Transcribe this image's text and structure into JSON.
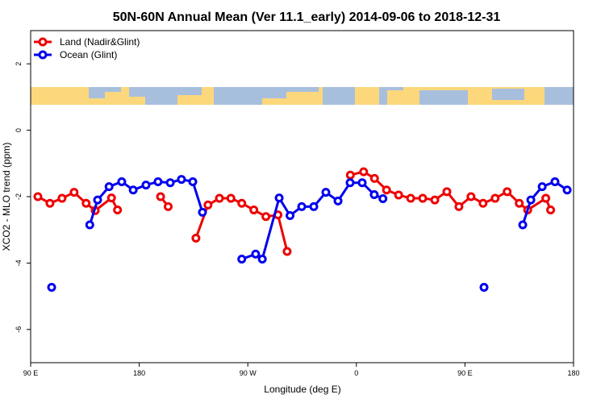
{
  "chart_data": {
    "type": "line",
    "title": "50N-60N Annual Mean (Ver 11.1_early)   2014-09-06 to 2018-12-31",
    "x_label": "Longitude (deg E)",
    "y_label": "XCO2 - MLO trend (ppm)",
    "xlim": [
      90,
      540
    ],
    "ylim": [
      -7,
      3
    ],
    "xticks": [
      {
        "value": 90,
        "label": "90 E"
      },
      180,
      {
        "value": 270,
        "label": "90 W"
      },
      {
        "value": 360,
        "label": "0"
      },
      {
        "value": 450,
        "label": "90 E"
      },
      {
        "value": 540,
        "label": "180"
      }
    ],
    "yticks": [
      -6,
      -4,
      -2,
      0,
      2
    ],
    "legend": "top-left",
    "series": [
      {
        "name": "Land (Nadir&Glint)",
        "color": "#ee0000",
        "x": [
          96,
          106,
          116,
          126,
          136,
          143.5,
          157,
          162,
          null,
          197.7,
          204,
          null,
          227,
          237,
          246.5,
          256,
          265,
          275,
          285,
          295,
          302.6,
          null,
          355,
          366,
          375,
          385,
          395,
          405,
          415,
          425,
          435,
          445,
          455,
          465,
          475,
          485,
          495,
          502,
          517,
          521
        ],
        "values": [
          -2.0,
          -2.2,
          -2.05,
          -1.87,
          -2.2,
          -2.42,
          -2.04,
          -2.4,
          null,
          -2.0,
          -2.3,
          null,
          -3.25,
          -2.25,
          -2.05,
          -2.05,
          -2.2,
          -2.4,
          -2.6,
          -2.55,
          -3.65,
          null,
          -1.35,
          -1.25,
          -1.45,
          -1.8,
          -1.95,
          -2.05,
          -2.05,
          -2.1,
          -1.85,
          -2.3,
          -2.0,
          -2.2,
          -2.05,
          -1.85,
          -2.2,
          -2.4,
          -2.05,
          -2.4
        ]
      },
      {
        "name": "Ocean (Glint)",
        "color": "#0000ee",
        "x": [
          107.4,
          null,
          139,
          145.5,
          155,
          165.5,
          175,
          185.6,
          195.6,
          205.7,
          215,
          224.4,
          232.4,
          null,
          265,
          276.5,
          282,
          296,
          305,
          314.7,
          324.7,
          334.7,
          344.8,
          354.8,
          364.8,
          374.8,
          382,
          null,
          465.8,
          null,
          497.9,
          504.6,
          514,
          524.6,
          534.7
        ],
        "values": [
          -4.73,
          null,
          -2.85,
          -2.1,
          -1.7,
          -1.55,
          -1.8,
          -1.65,
          -1.55,
          -1.58,
          -1.48,
          -1.55,
          -2.47,
          null,
          -3.88,
          -3.73,
          -3.88,
          -2.04,
          -2.57,
          -2.3,
          -2.3,
          -1.87,
          -2.13,
          -1.58,
          -1.58,
          -1.94,
          -2.06,
          null,
          -4.73,
          null,
          -2.85,
          -2.1,
          -1.7,
          -1.55,
          -1.8
        ]
      }
    ]
  }
}
